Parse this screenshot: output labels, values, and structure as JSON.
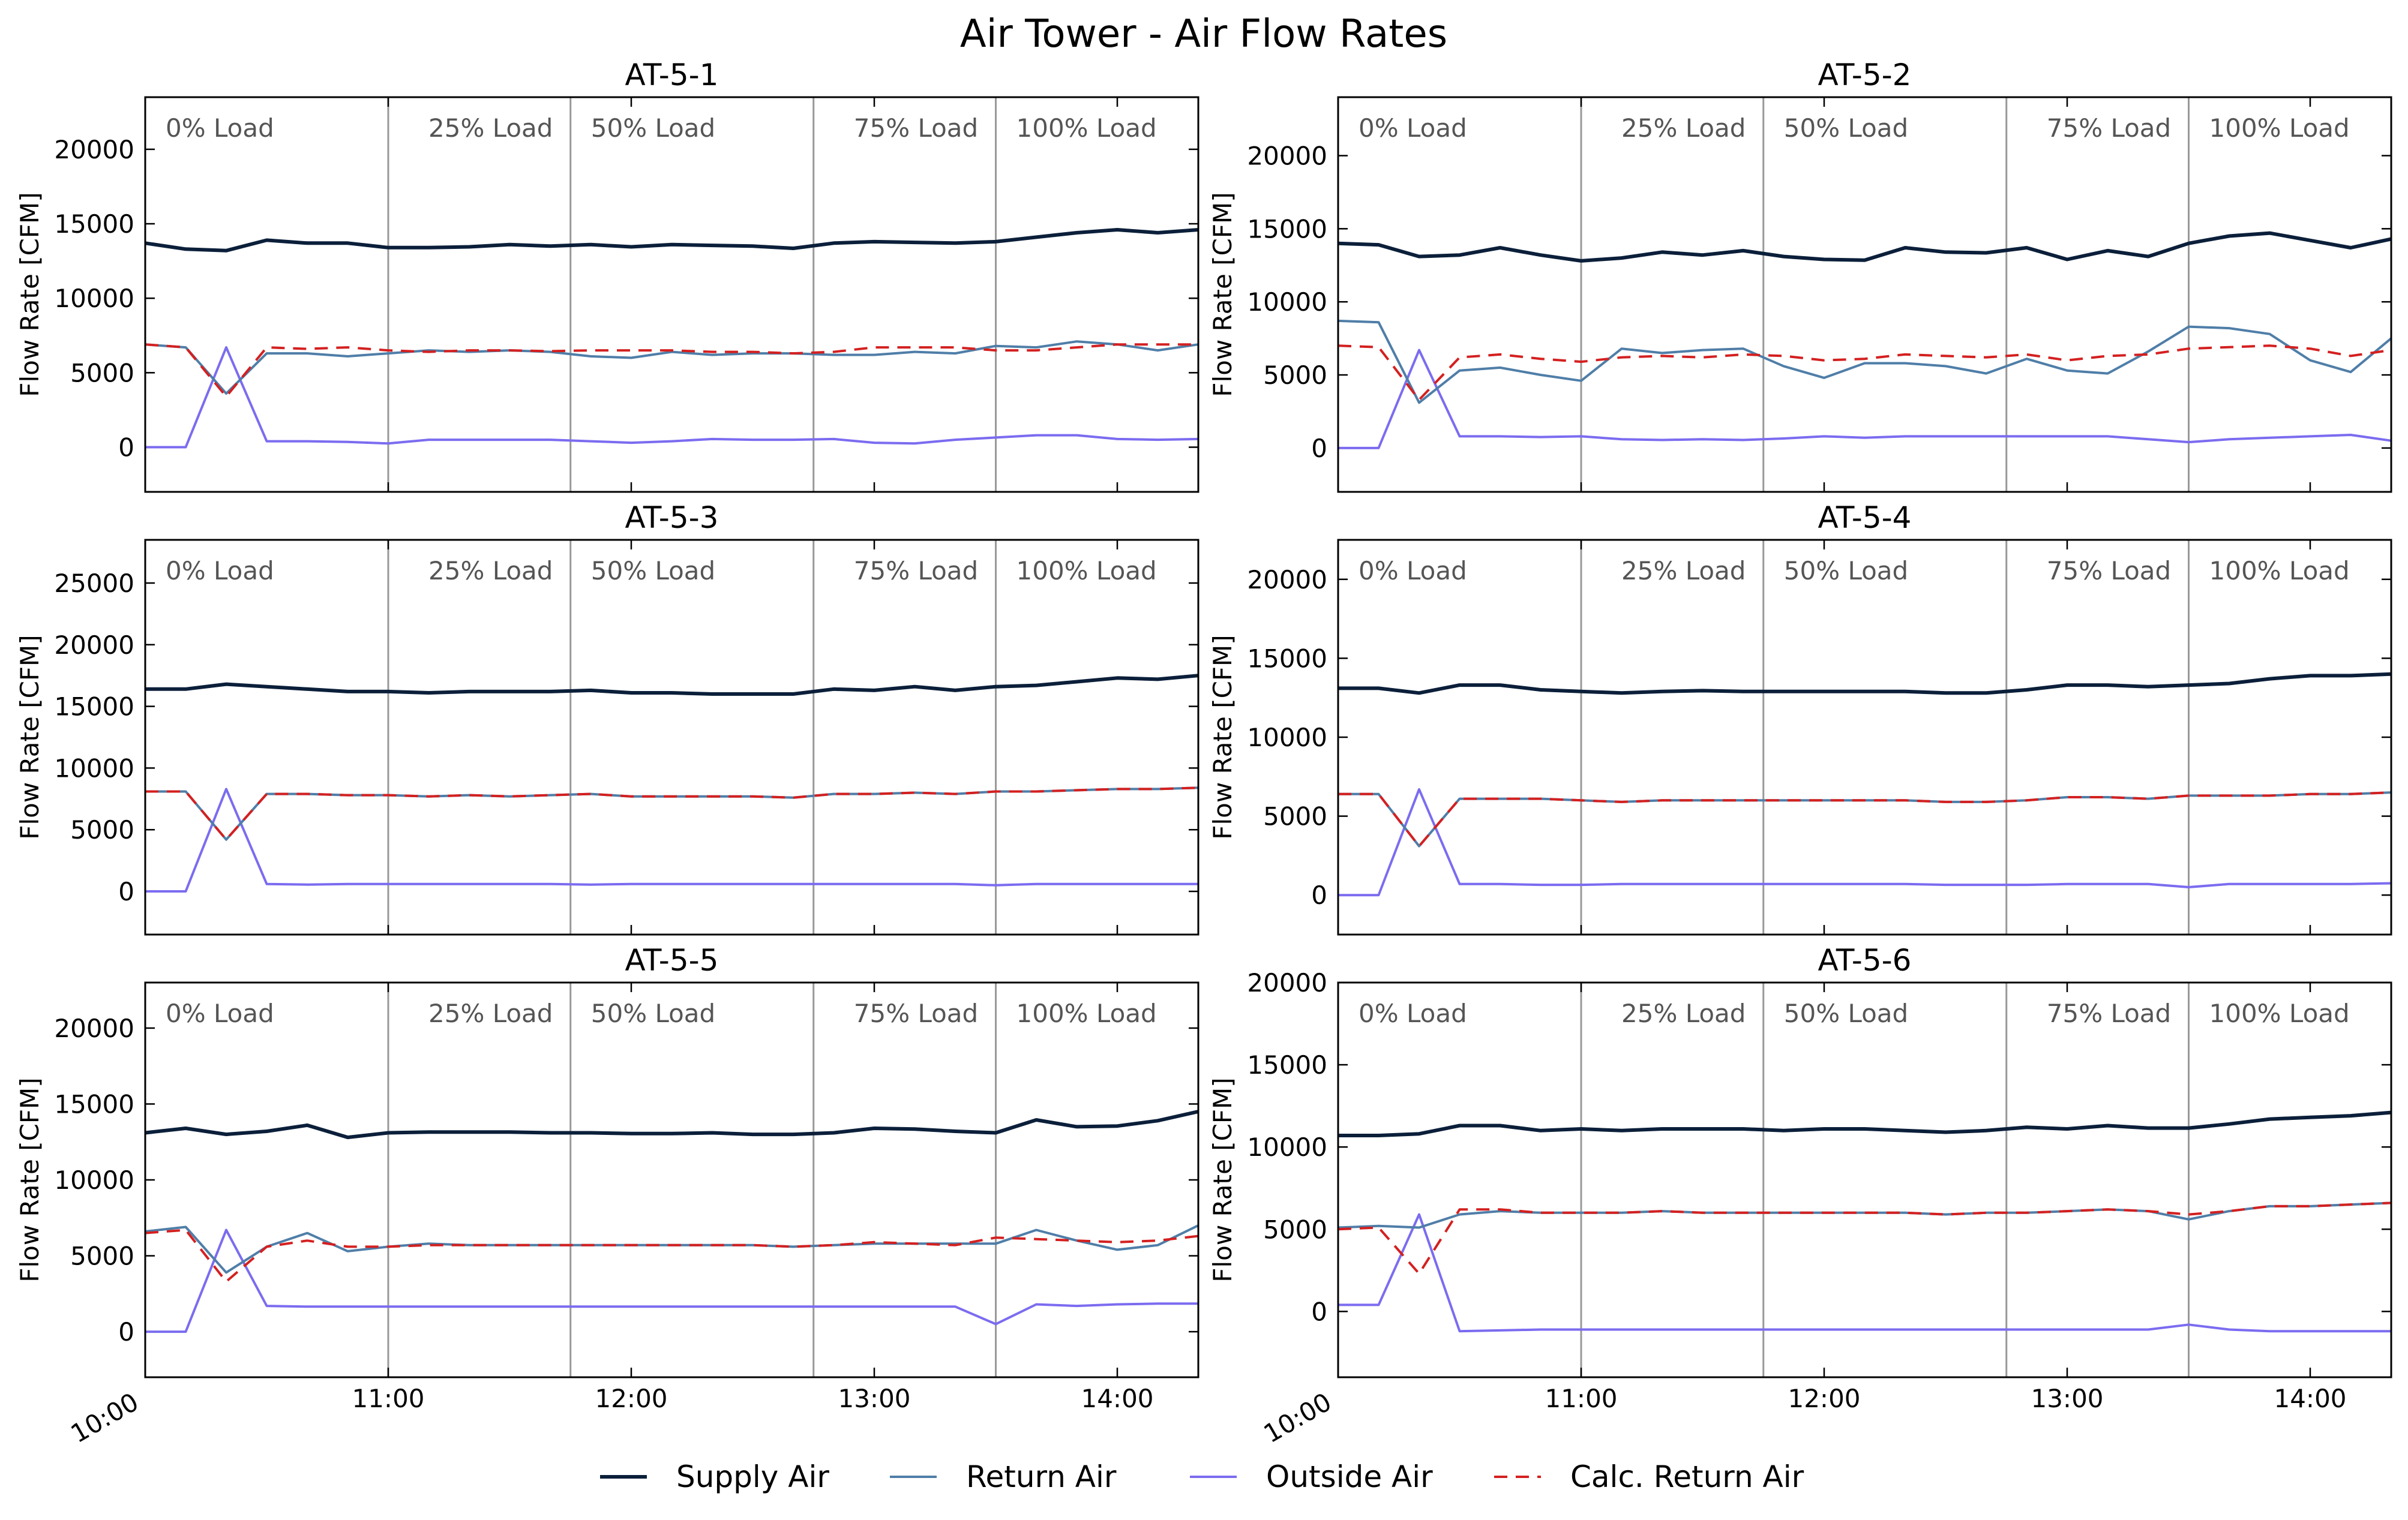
{
  "title": "Air Tower - Air Flow Rates",
  "colors": {
    "supply": "#0b1f3a",
    "return": "#4f7ea8",
    "outside": "#7b6cf0",
    "calc": "#d42020",
    "phase_line": "#999999"
  },
  "legend": {
    "placement": "bottom-center",
    "items": [
      {
        "key": "supply",
        "label": "Supply Air",
        "color": "#0b1f3a",
        "dash": false
      },
      {
        "key": "return",
        "label": "Return Air",
        "color": "#4f7ea8",
        "dash": false
      },
      {
        "key": "outside",
        "label": "Outside Air",
        "color": "#7b6cf0",
        "dash": false
      },
      {
        "key": "calc",
        "label": "Calc. Return Air",
        "color": "#d42020",
        "dash": true
      }
    ]
  },
  "chart_data": {
    "type": "line",
    "grid": false,
    "ylabel": "Flow Rate [CFM]",
    "x": [
      "10:00",
      "10:10",
      "10:20",
      "10:30",
      "10:40",
      "10:50",
      "11:00",
      "11:10",
      "11:20",
      "11:30",
      "11:40",
      "11:50",
      "12:00",
      "12:10",
      "12:20",
      "12:30",
      "12:40",
      "12:50",
      "13:00",
      "13:10",
      "13:20",
      "13:30",
      "13:40",
      "13:50",
      "14:00",
      "14:10",
      "14:20"
    ],
    "xlim": [
      "10:00",
      "14:20"
    ],
    "xticks": [
      "10:00",
      "11:00",
      "12:00",
      "13:00",
      "14:00"
    ],
    "phases": [
      {
        "label": "0% Load",
        "start": "10:00"
      },
      {
        "label": "25% Load",
        "start": "11:00"
      },
      {
        "label": "50% Load",
        "start": "11:45"
      },
      {
        "label": "75% Load",
        "start": "12:45"
      },
      {
        "label": "100% Load",
        "start": "13:30"
      }
    ],
    "panels": [
      {
        "title": "AT-5-1",
        "ylim": [
          -3000,
          23500
        ],
        "yticks": [
          0,
          5000,
          10000,
          15000,
          20000
        ],
        "series": [
          {
            "key": "supply",
            "name": "Supply Air",
            "values": [
              13700,
              13300,
              13200,
              13900,
              13700,
              13700,
              13400,
              13400,
              13450,
              13600,
              13500,
              13600,
              13450,
              13600,
              13550,
              13500,
              13350,
              13700,
              13800,
              13750,
              13700,
              13800,
              14100,
              14400,
              14600,
              14400,
              14600
            ]
          },
          {
            "key": "return",
            "name": "Return Air",
            "values": [
              6900,
              6700,
              3600,
              6300,
              6300,
              6100,
              6300,
              6500,
              6400,
              6500,
              6400,
              6100,
              6000,
              6400,
              6200,
              6300,
              6300,
              6200,
              6200,
              6400,
              6300,
              6800,
              6700,
              7100,
              6900,
              6500,
              6900
            ]
          },
          {
            "key": "outside",
            "name": "Outside Air",
            "values": [
              0,
              0,
              6700,
              400,
              400,
              350,
              250,
              500,
              500,
              500,
              500,
              400,
              300,
              400,
              550,
              500,
              500,
              550,
              300,
              250,
              500,
              650,
              800,
              800,
              550,
              500,
              550
            ]
          },
          {
            "key": "calc",
            "name": "Calc. Return Air",
            "values": [
              6900,
              6700,
              3400,
              6700,
              6600,
              6700,
              6500,
              6400,
              6500,
              6500,
              6450,
              6500,
              6500,
              6500,
              6400,
              6400,
              6300,
              6400,
              6700,
              6700,
              6700,
              6500,
              6500,
              6700,
              6900,
              6900,
              6900
            ]
          }
        ]
      },
      {
        "title": "AT-5-2",
        "ylim": [
          -3000,
          24000
        ],
        "yticks": [
          0,
          5000,
          10000,
          15000,
          20000
        ],
        "series": [
          {
            "key": "supply",
            "name": "Supply Air",
            "values": [
              14000,
              13900,
              13100,
              13200,
              13700,
              13200,
              12800,
              13000,
              13400,
              13200,
              13500,
              13100,
              12900,
              12850,
              13700,
              13400,
              13350,
              13700,
              12900,
              13500,
              13100,
              14000,
              14500,
              14700,
              14200,
              13700,
              14300
            ]
          },
          {
            "key": "return",
            "name": "Return Air",
            "values": [
              8700,
              8600,
              3100,
              5300,
              5500,
              5000,
              4600,
              6800,
              6500,
              6700,
              6800,
              5600,
              4800,
              5800,
              5800,
              5600,
              5100,
              6100,
              5300,
              5100,
              6600,
              8300,
              8200,
              7800,
              6000,
              5200,
              7500
            ]
          },
          {
            "key": "outside",
            "name": "Outside Air",
            "values": [
              0,
              0,
              6700,
              800,
              800,
              750,
              800,
              600,
              550,
              600,
              550,
              650,
              800,
              700,
              800,
              800,
              800,
              800,
              800,
              800,
              600,
              400,
              600,
              700,
              800,
              900,
              500
            ]
          },
          {
            "key": "calc",
            "name": "Calc. Return Air",
            "values": [
              7000,
              6900,
              3300,
              6200,
              6400,
              6100,
              5900,
              6200,
              6300,
              6200,
              6400,
              6300,
              6000,
              6100,
              6400,
              6300,
              6200,
              6400,
              6000,
              6300,
              6400,
              6800,
              6900,
              7000,
              6800,
              6300,
              6700
            ]
          }
        ]
      },
      {
        "title": "AT-5-3",
        "ylim": [
          -3500,
          28500
        ],
        "yticks": [
          0,
          5000,
          10000,
          15000,
          20000,
          25000
        ],
        "series": [
          {
            "key": "supply",
            "name": "Supply Air",
            "values": [
              16400,
              16400,
              16800,
              16600,
              16400,
              16200,
              16200,
              16100,
              16200,
              16200,
              16200,
              16300,
              16100,
              16100,
              16000,
              16000,
              16000,
              16400,
              16300,
              16600,
              16300,
              16600,
              16700,
              17000,
              17300,
              17200,
              17500
            ]
          },
          {
            "key": "return",
            "name": "Return Air",
            "values": [
              8100,
              8100,
              4200,
              7900,
              7900,
              7800,
              7800,
              7700,
              7800,
              7700,
              7800,
              7900,
              7700,
              7700,
              7700,
              7700,
              7600,
              7900,
              7900,
              8000,
              7900,
              8100,
              8100,
              8200,
              8300,
              8300,
              8400
            ]
          },
          {
            "key": "outside",
            "name": "Outside Air",
            "values": [
              0,
              0,
              8300,
              600,
              550,
              600,
              600,
              600,
              600,
              600,
              600,
              550,
              600,
              600,
              600,
              600,
              600,
              600,
              600,
              600,
              600,
              500,
              600,
              600,
              600,
              600,
              600
            ]
          },
          {
            "key": "calc",
            "name": "Calc. Return Air",
            "values": [
              8100,
              8100,
              4200,
              7900,
              7900,
              7800,
              7800,
              7700,
              7800,
              7700,
              7800,
              7900,
              7700,
              7700,
              7700,
              7700,
              7600,
              7900,
              7900,
              8000,
              7900,
              8100,
              8100,
              8200,
              8300,
              8300,
              8400
            ]
          }
        ]
      },
      {
        "title": "AT-5-4",
        "ylim": [
          -2500,
          22500
        ],
        "yticks": [
          0,
          5000,
          10000,
          15000,
          20000
        ],
        "series": [
          {
            "key": "supply",
            "name": "Supply Air",
            "values": [
              13100,
              13100,
              12800,
              13300,
              13300,
              13000,
              12900,
              12800,
              12900,
              12950,
              12900,
              12900,
              12900,
              12900,
              12900,
              12800,
              12800,
              13000,
              13300,
              13300,
              13200,
              13300,
              13400,
              13700,
              13900,
              13900,
              14000
            ]
          },
          {
            "key": "return",
            "name": "Return Air",
            "values": [
              6400,
              6400,
              3100,
              6100,
              6100,
              6100,
              6000,
              5900,
              6000,
              6000,
              6000,
              6000,
              6000,
              6000,
              6000,
              5900,
              5900,
              6000,
              6200,
              6200,
              6100,
              6300,
              6300,
              6300,
              6400,
              6400,
              6500
            ]
          },
          {
            "key": "outside",
            "name": "Outside Air",
            "values": [
              0,
              0,
              6700,
              700,
              700,
              650,
              650,
              700,
              700,
              700,
              700,
              700,
              700,
              700,
              700,
              650,
              650,
              650,
              700,
              700,
              700,
              500,
              700,
              700,
              700,
              700,
              750
            ]
          },
          {
            "key": "calc",
            "name": "Calc. Return Air",
            "values": [
              6400,
              6400,
              3100,
              6100,
              6100,
              6100,
              6000,
              5900,
              6000,
              6000,
              6000,
              6000,
              6000,
              6000,
              6000,
              5900,
              5900,
              6000,
              6200,
              6200,
              6100,
              6300,
              6300,
              6300,
              6400,
              6400,
              6500
            ]
          }
        ]
      },
      {
        "title": "AT-5-5",
        "ylim": [
          -3000,
          23000
        ],
        "yticks": [
          0,
          5000,
          10000,
          15000,
          20000
        ],
        "series": [
          {
            "key": "supply",
            "name": "Supply Air",
            "values": [
              13100,
              13400,
              13000,
              13200,
              13600,
              12800,
              13100,
              13150,
              13150,
              13150,
              13100,
              13100,
              13050,
              13050,
              13100,
              13000,
              13000,
              13100,
              13400,
              13350,
              13200,
              13100,
              13950,
              13500,
              13550,
              13900,
              14500
            ]
          },
          {
            "key": "return",
            "name": "Return Air",
            "values": [
              6600,
              6900,
              3900,
              5600,
              6500,
              5300,
              5600,
              5800,
              5700,
              5700,
              5700,
              5700,
              5700,
              5700,
              5700,
              5700,
              5600,
              5700,
              5800,
              5800,
              5800,
              5800,
              6700,
              6000,
              5400,
              5700,
              7000
            ]
          },
          {
            "key": "outside",
            "name": "Outside Air",
            "values": [
              0,
              0,
              6700,
              1700,
              1650,
              1650,
              1650,
              1650,
              1650,
              1650,
              1650,
              1650,
              1650,
              1650,
              1650,
              1650,
              1650,
              1650,
              1650,
              1650,
              1650,
              500,
              1800,
              1700,
              1800,
              1850,
              1850
            ]
          },
          {
            "key": "calc",
            "name": "Calc. Return Air",
            "values": [
              6500,
              6700,
              3300,
              5600,
              6000,
              5600,
              5600,
              5700,
              5700,
              5700,
              5700,
              5700,
              5700,
              5700,
              5700,
              5700,
              5600,
              5700,
              5900,
              5800,
              5700,
              6200,
              6100,
              6000,
              5900,
              6000,
              6300
            ]
          }
        ]
      },
      {
        "title": "AT-5-6",
        "ylim": [
          -4000,
          20000
        ],
        "yticks": [
          0,
          5000,
          10000,
          15000,
          20000
        ],
        "series": [
          {
            "key": "supply",
            "name": "Supply Air",
            "values": [
              10700,
              10700,
              10800,
              11300,
              11300,
              11000,
              11100,
              11000,
              11100,
              11100,
              11100,
              11000,
              11100,
              11100,
              11000,
              10900,
              11000,
              11200,
              11100,
              11300,
              11150,
              11150,
              11400,
              11700,
              11800,
              11900,
              12100
            ]
          },
          {
            "key": "return",
            "name": "Return Air",
            "values": [
              5100,
              5200,
              5100,
              5900,
              6100,
              6000,
              6000,
              6000,
              6100,
              6000,
              6000,
              6000,
              6000,
              6000,
              6000,
              5900,
              6000,
              6000,
              6100,
              6200,
              6100,
              5600,
              6100,
              6400,
              6400,
              6500,
              6600
            ]
          },
          {
            "key": "outside",
            "name": "Outside Air",
            "values": [
              400,
              400,
              5900,
              -1200,
              -1150,
              -1100,
              -1100,
              -1100,
              -1100,
              -1100,
              -1100,
              -1100,
              -1100,
              -1100,
              -1100,
              -1100,
              -1100,
              -1100,
              -1100,
              -1100,
              -1100,
              -800,
              -1100,
              -1200,
              -1200,
              -1200,
              -1200
            ]
          },
          {
            "key": "calc",
            "name": "Calc. Return Air",
            "values": [
              5000,
              5100,
              2300,
              6200,
              6200,
              6000,
              6000,
              6000,
              6100,
              6000,
              6000,
              6000,
              6000,
              6000,
              6000,
              5900,
              6000,
              6000,
              6100,
              6200,
              6100,
              5900,
              6100,
              6400,
              6400,
              6500,
              6600
            ]
          }
        ]
      }
    ]
  }
}
